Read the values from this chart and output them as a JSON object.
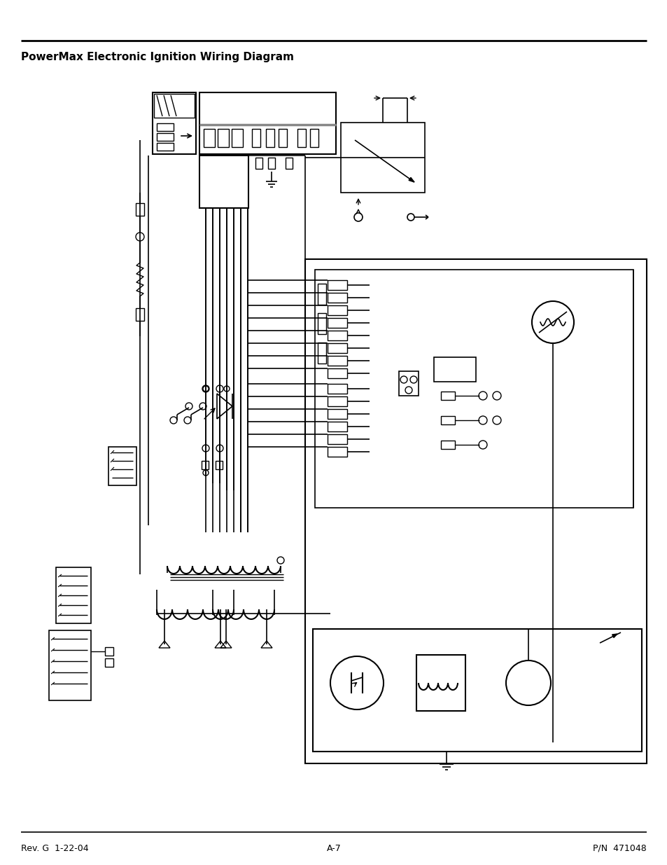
{
  "title": "PowerMax Electronic Ignition Wiring Diagram",
  "footer_left": "Rev. G  1-22-04",
  "footer_center": "A-7",
  "footer_right": "P/N  471048",
  "bg_color": "#ffffff",
  "line_color": "#000000",
  "title_fontsize": 11,
  "footer_fontsize": 9,
  "fig_width": 9.54,
  "fig_height": 12.35
}
